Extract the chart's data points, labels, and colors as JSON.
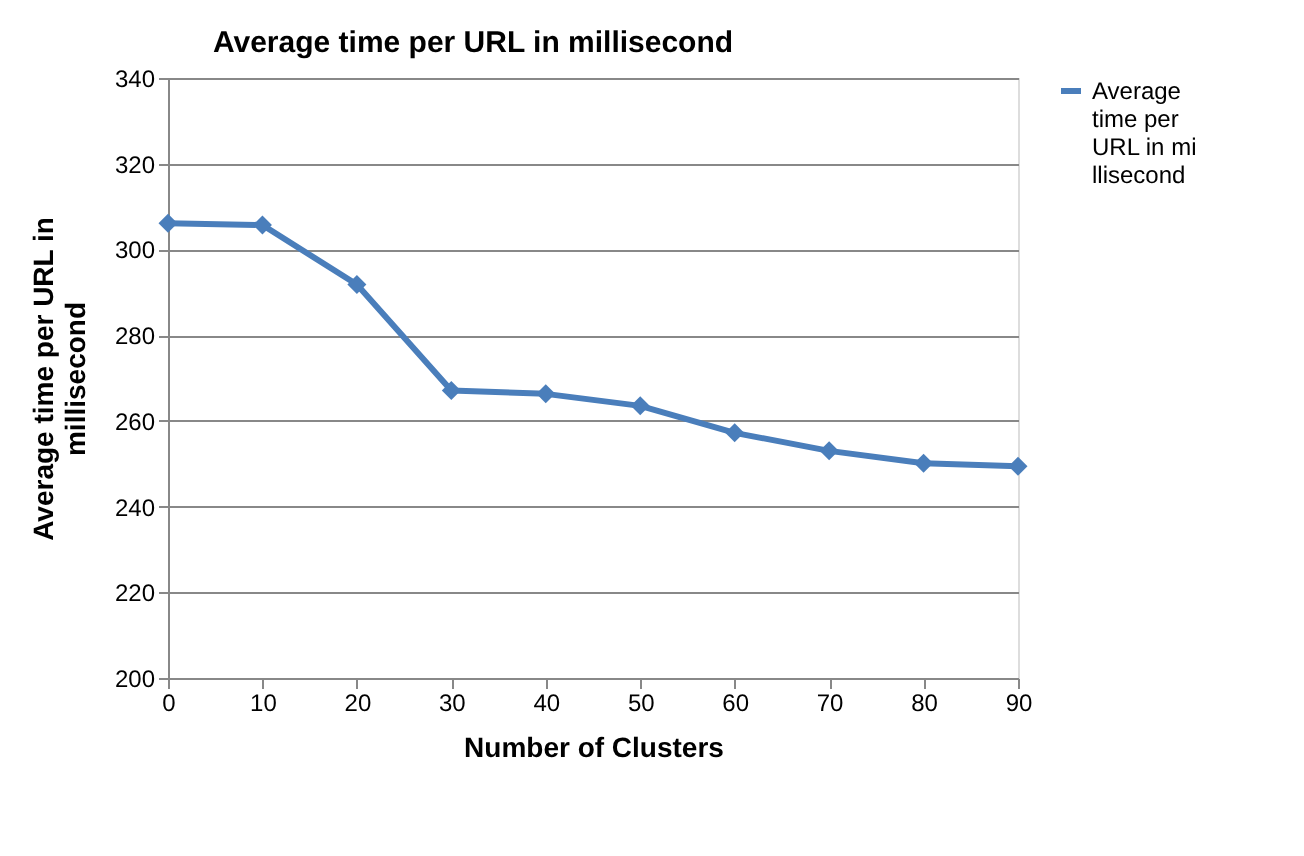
{
  "chart_data": {
    "type": "line",
    "title": "Average time per URL in millisecond",
    "xlabel": "Number of Clusters",
    "ylabel": "Average  time per URL in millisecond",
    "x": [
      0,
      10,
      20,
      30,
      40,
      50,
      60,
      70,
      80,
      90
    ],
    "series": [
      {
        "name": "Average time per URL in millisecond",
        "color": "#4a7ebb",
        "values": [
          306.1,
          305.7,
          291.8,
          267.1,
          266.3,
          263.5,
          257.2,
          253.0,
          250.1,
          249.4
        ]
      }
    ],
    "xlim": [
      0,
      90
    ],
    "xticks": [
      0,
      10,
      20,
      30,
      40,
      50,
      60,
      70,
      80,
      90
    ],
    "ylim": [
      200,
      340
    ],
    "yticks": [
      200,
      220,
      240,
      260,
      280,
      300,
      320,
      340
    ],
    "grid": "y",
    "legend": "right",
    "marker": "diamond",
    "line_style": "solid"
  }
}
